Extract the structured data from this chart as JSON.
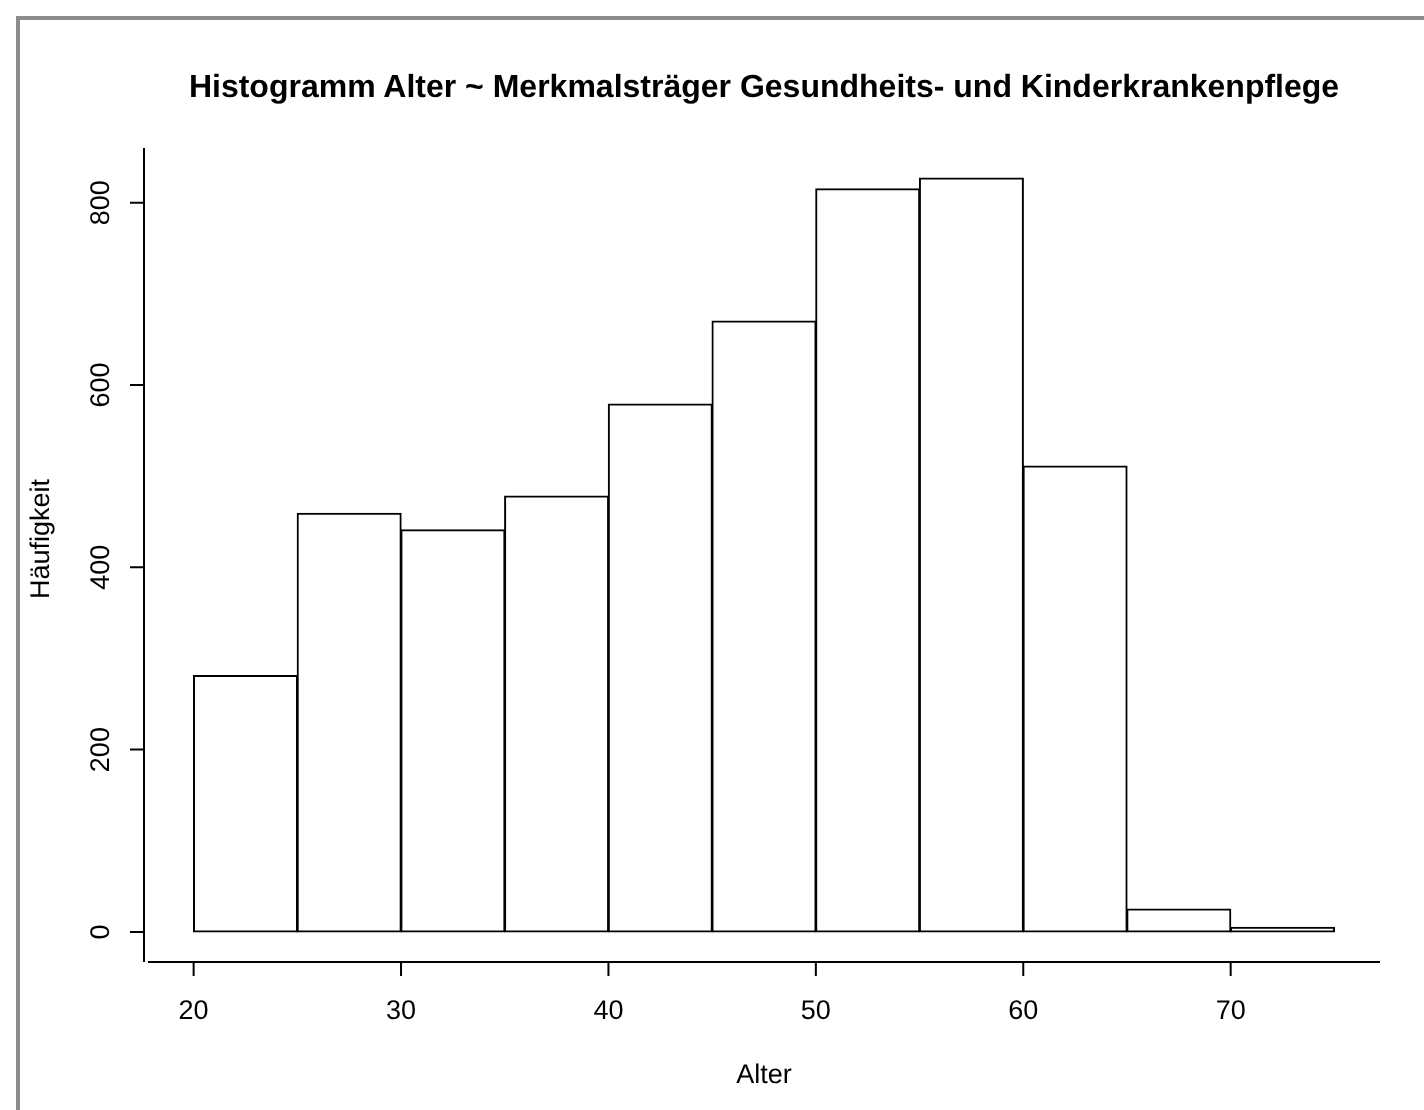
{
  "chart_data": {
    "type": "histogram",
    "title": "Histogramm Alter ~ Merkmalsträger Gesundheits- und Kinderkrankenpflege",
    "xlabel": "Alter",
    "ylabel": "Häufigkeit",
    "bins": [
      20,
      25,
      30,
      35,
      40,
      45,
      50,
      55,
      60,
      65,
      70,
      75
    ],
    "values": [
      281,
      459,
      441,
      478,
      579,
      670,
      815,
      827,
      511,
      25,
      5
    ],
    "color": "#ffffff",
    "xlim": [
      17.8,
      77.2
    ],
    "ylim": [
      -33,
      860
    ],
    "xticks": [
      20,
      30,
      40,
      50,
      60,
      70
    ],
    "yticks": [
      0,
      200,
      400,
      600,
      800
    ]
  }
}
